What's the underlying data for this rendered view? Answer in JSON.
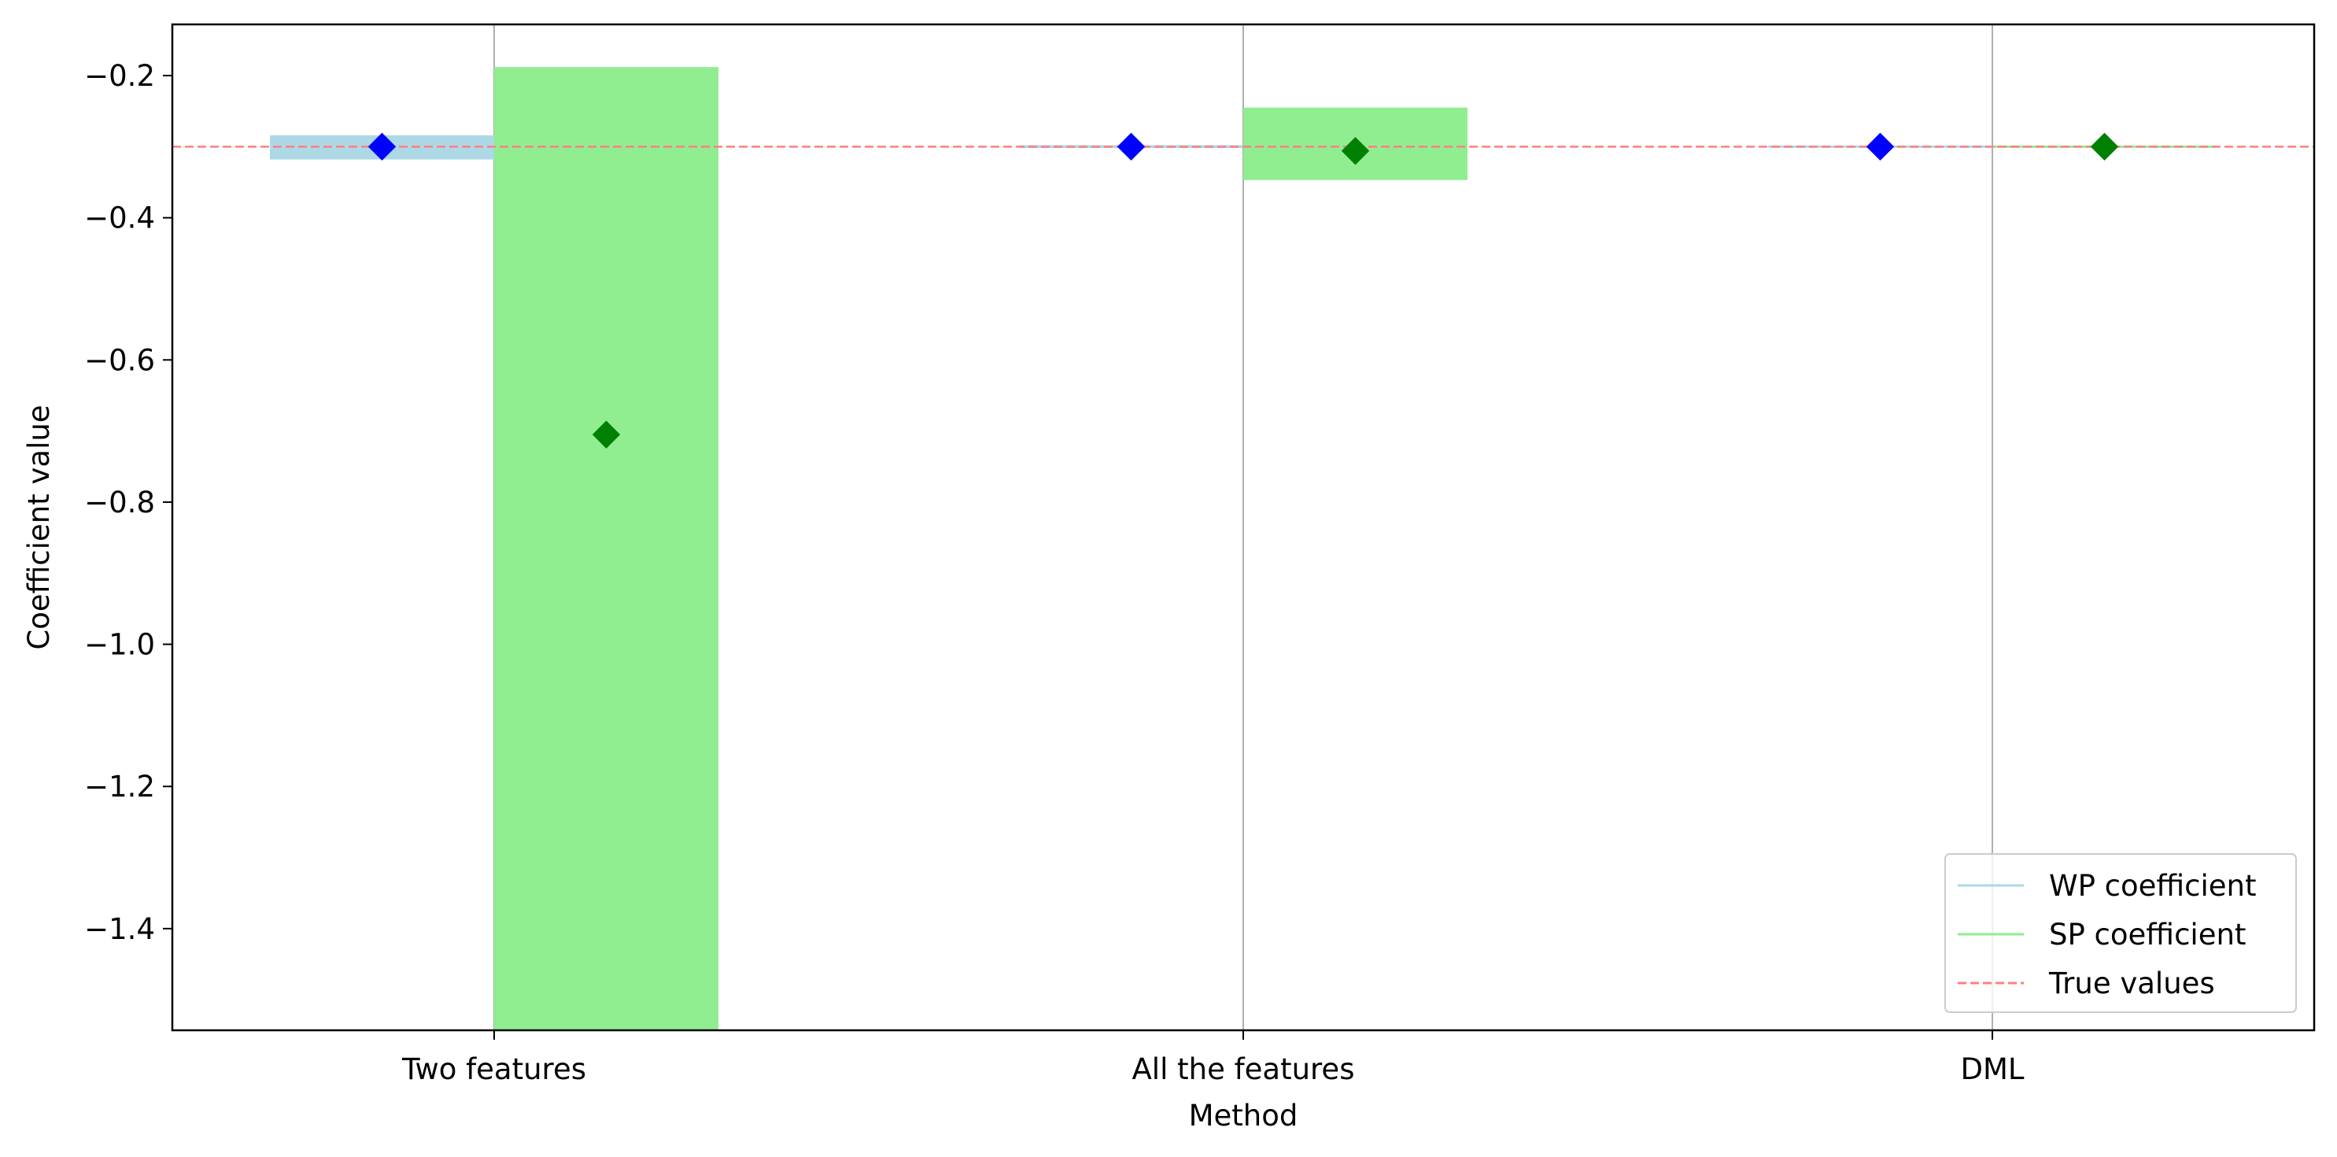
{
  "chart_data": {
    "type": "bar",
    "xlabel": "Method",
    "ylabel": "Coefficient value",
    "categories": [
      "Two features",
      "All the features",
      "DML"
    ],
    "ylim": [
      -1.543,
      -0.128
    ],
    "yticks": [
      -0.2,
      -0.4,
      -0.6,
      -0.8,
      -1.0,
      -1.2,
      -1.4
    ],
    "ytick_labels": [
      "−0.2",
      "−0.4",
      "−0.6",
      "−0.8",
      "−1.0",
      "−1.2",
      "−1.4"
    ],
    "true_value": -0.3,
    "grid": "vertical lines at category ticks",
    "legend_position": "lower-right",
    "series": [
      {
        "name": "WP coefficient",
        "color": "#add8e6",
        "marker_color": "#0000ff",
        "marker": "diamond",
        "estimates": [
          -0.3,
          -0.3,
          -0.3
        ],
        "intervals": [
          [
            -0.318,
            -0.284
          ],
          [
            -0.302,
            -0.298
          ],
          [
            -0.3,
            -0.3
          ]
        ]
      },
      {
        "name": "SP coefficient",
        "color": "#90ee90",
        "marker_color": "#008000",
        "marker": "diamond",
        "estimates": [
          -0.705,
          -0.306,
          -0.3
        ],
        "intervals": [
          [
            -1.543,
            -0.188
          ],
          [
            -0.347,
            -0.245
          ],
          [
            -0.301,
            -0.299
          ]
        ]
      }
    ],
    "reference_line": {
      "name": "True values",
      "color": "#ff7f7f",
      "style": "dashed"
    }
  }
}
